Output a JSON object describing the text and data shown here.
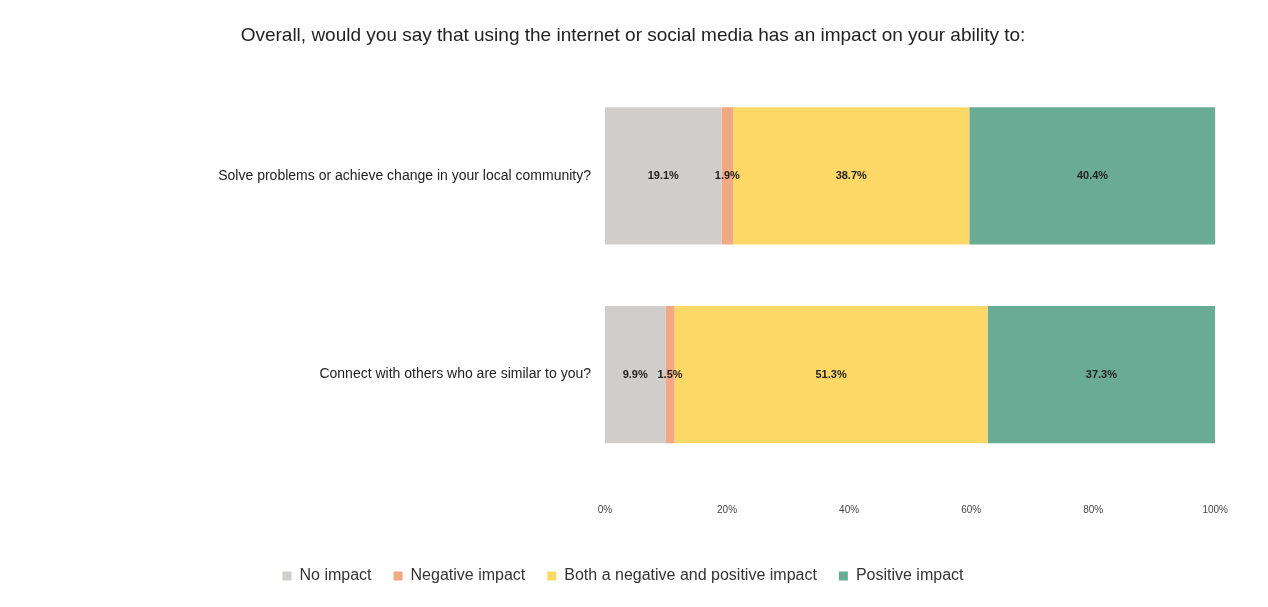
{
  "chart_data": {
    "type": "bar",
    "orientation": "horizontal",
    "stacked": true,
    "title": "Overall, would you say that using the internet or social media has an impact on your ability to:",
    "categories": [
      "Solve problems or achieve change in your local community?",
      "Connect with others who are similar to you?"
    ],
    "series": [
      {
        "name": "No impact",
        "color": "#d0cecd",
        "values": [
          19.1,
          9.9
        ],
        "value_labels": [
          "19.1%",
          "9.9%"
        ]
      },
      {
        "name": "Negative impact",
        "color": "#f2a983",
        "values": [
          1.9,
          1.5
        ],
        "value_labels": [
          "1.9%",
          "1.5%"
        ]
      },
      {
        "name": "Both a negative and positive impact",
        "color": "#fed866",
        "values": [
          38.7,
          51.3
        ],
        "value_labels": [
          "38.7%",
          "51.3%"
        ]
      },
      {
        "name": "Positive impact",
        "color": "#6aab95",
        "values": [
          40.4,
          37.3
        ],
        "value_labels": [
          "40.4%",
          "37.3%"
        ]
      }
    ],
    "xlim": [
      0,
      100
    ],
    "xticks": [
      {
        "value": 0,
        "label": "0%"
      },
      {
        "value": 20,
        "label": "20%"
      },
      {
        "value": 40,
        "label": "40%"
      },
      {
        "value": 60,
        "label": "60%"
      },
      {
        "value": 80,
        "label": "80%"
      },
      {
        "value": 100,
        "label": "100%"
      }
    ],
    "grid": false,
    "legend": "bottom"
  }
}
